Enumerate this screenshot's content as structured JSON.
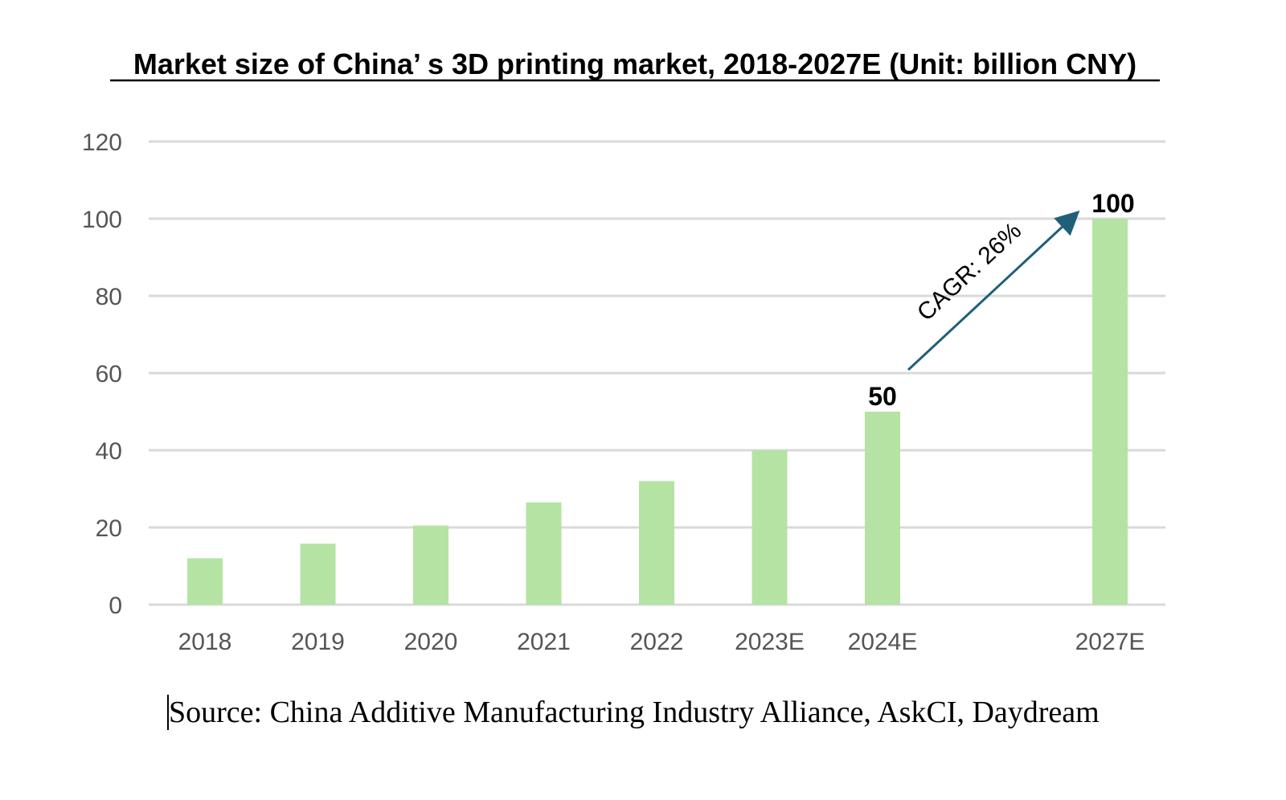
{
  "chart_data": {
    "type": "bar",
    "title": "Market size of China’ s 3D printing market, 2018-2027E (Unit: billion CNY)",
    "categories": [
      "2018",
      "2019",
      "2020",
      "2021",
      "2022",
      "2023E",
      "2024E",
      "2027E"
    ],
    "values": [
      12,
      15.8,
      20.5,
      26.5,
      32,
      40,
      50,
      100
    ],
    "data_labels": [
      {
        "category": "2024E",
        "text": "50"
      },
      {
        "category": "2027E",
        "text": "100"
      }
    ],
    "annotation": {
      "text": "CAGR: 26%",
      "from": "2024E",
      "to": "2027E",
      "arrow_color": "#1f5f7a"
    },
    "ylim": [
      0,
      120
    ],
    "yticks": [
      0,
      20,
      40,
      60,
      80,
      100,
      120
    ],
    "xlabel": "",
    "ylabel": "",
    "grid": true,
    "legend": "none",
    "bar_color": "#b5e3a3",
    "grid_color": "#d9d9d9",
    "source": "Source: China Additive Manufacturing Industry Alliance, AskCI, Daydream"
  }
}
